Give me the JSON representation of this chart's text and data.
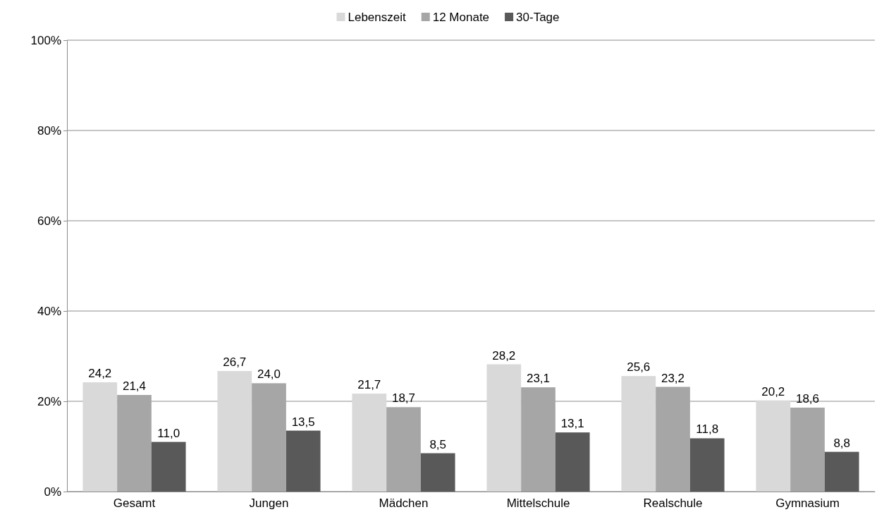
{
  "chart_data": {
    "type": "bar",
    "categories": [
      "Gesamt",
      "Jungen",
      "Mädchen",
      "Mittelschule",
      "Realschule",
      "Gymnasium"
    ],
    "series": [
      {
        "name": "Lebenszeit",
        "color": "#d9d9d9",
        "values": [
          24.2,
          26.7,
          21.7,
          28.2,
          25.6,
          20.2
        ],
        "value_labels": [
          "24,2",
          "26,7",
          "21,7",
          "28,2",
          "25,6",
          "20,2"
        ]
      },
      {
        "name": "12 Monate",
        "color": "#a6a6a6",
        "values": [
          21.4,
          24.0,
          18.7,
          23.1,
          23.2,
          18.6
        ],
        "value_labels": [
          "21,4",
          "24,0",
          "18,7",
          "23,1",
          "23,2",
          "18,6"
        ]
      },
      {
        "name": "30-Tage",
        "color": "#595959",
        "values": [
          11.0,
          13.5,
          8.5,
          13.1,
          11.8,
          8.8
        ],
        "value_labels": [
          "11,0",
          "13,5",
          "8,5",
          "13,1",
          "11,8",
          "8,8"
        ]
      }
    ],
    "ylim": [
      0,
      100
    ],
    "yticks": [
      {
        "value": 0,
        "label": "0%"
      },
      {
        "value": 20,
        "label": "20%"
      },
      {
        "value": 40,
        "label": "40%"
      },
      {
        "value": 60,
        "label": "60%"
      },
      {
        "value": 80,
        "label": "80%"
      },
      {
        "value": 100,
        "label": "100%"
      }
    ],
    "grid": "y",
    "legend": "top"
  }
}
